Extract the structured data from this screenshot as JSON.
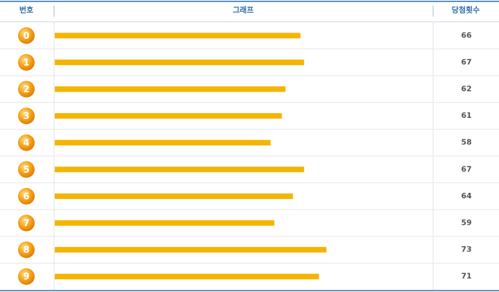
{
  "chart_data": {
    "type": "bar",
    "orientation": "horizontal",
    "columns": [
      "번호",
      "그래프",
      "당첨횟수"
    ],
    "categories": [
      "0",
      "1",
      "2",
      "3",
      "4",
      "5",
      "6",
      "7",
      "8",
      "9"
    ],
    "values": [
      66,
      67,
      62,
      61,
      58,
      67,
      64,
      59,
      73,
      71
    ],
    "color": "#f5b400"
  }
}
